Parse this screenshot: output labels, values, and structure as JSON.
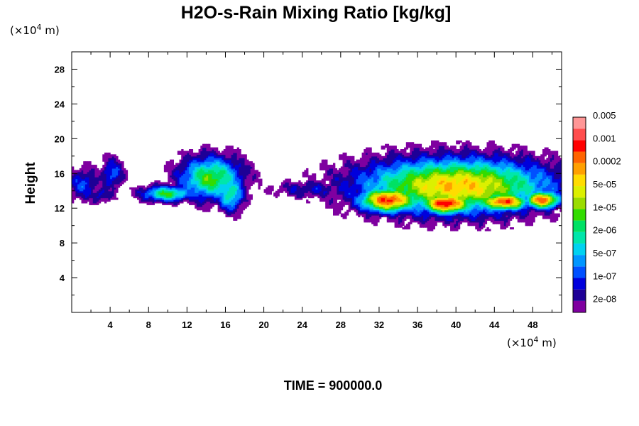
{
  "chart_data": {
    "type": "heatmap",
    "title": "H2O-s-Rain Mixing Ratio [kg/kg]",
    "ylabel": "Height",
    "x_unit": "(×10",
    "x_unit_exp": "4",
    "x_unit_tail": " m)",
    "y_unit": "(×10",
    "y_unit_exp": "4",
    "y_unit_tail": " m)",
    "xlim": [
      0,
      51
    ],
    "ylim": [
      0,
      30
    ],
    "x_ticks": [
      4,
      8,
      12,
      16,
      20,
      24,
      28,
      32,
      36,
      40,
      44,
      48
    ],
    "x_tick_labels": [
      "4",
      "8",
      "12",
      "16",
      "20",
      "24",
      "28",
      "32",
      "36",
      "40",
      "44",
      "48"
    ],
    "y_ticks": [
      4,
      8,
      12,
      16,
      20,
      24,
      28
    ],
    "y_tick_labels": [
      "4",
      "8",
      "12",
      "16",
      "20",
      "24",
      "28"
    ],
    "colorbar": {
      "colors": [
        "#7f00a0",
        "#1e0096",
        "#0000dc",
        "#0050ff",
        "#0096ff",
        "#00d2f0",
        "#00e6aa",
        "#00e164",
        "#32dc00",
        "#9bdc00",
        "#dcf000",
        "#ffdc00",
        "#ffa000",
        "#ff6400",
        "#ff0000",
        "#ff4d4d",
        "#ff9696"
      ],
      "labels": [
        "2e-08",
        "1e-07",
        "5e-07",
        "2e-06",
        "1e-05",
        "5e-05",
        "0.0002",
        "0.001",
        "0.005"
      ]
    },
    "cloud_regions": [
      {
        "x": [
          0,
          7.5
        ],
        "y": [
          12.3,
          18.3
        ],
        "max_level": 4
      },
      {
        "x": [
          6,
          19
        ],
        "y": [
          11.8,
          18.6
        ],
        "max_level": 10
      },
      {
        "x": [
          19,
          51
        ],
        "y": [
          10.5,
          18.7
        ],
        "max_level": 15
      }
    ],
    "time_label": "TIME = 900000.0"
  }
}
